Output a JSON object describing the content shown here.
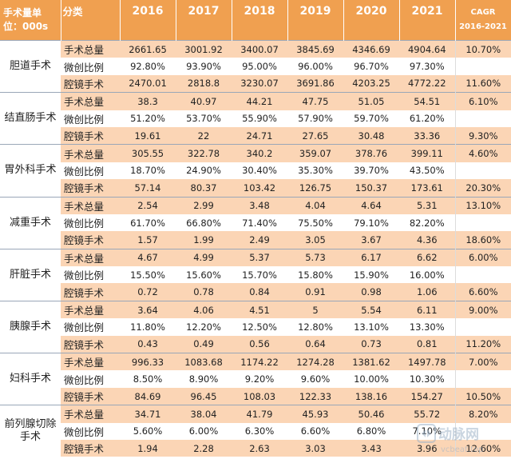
{
  "header": {
    "unit_label_line1": "手术量单",
    "unit_label_line2": "位：000s",
    "category_label": "分类",
    "years": [
      "2016",
      "2017",
      "2018",
      "2019",
      "2020",
      "2021"
    ],
    "cagr_label": "CAGR",
    "cagr_period": "2016-2021"
  },
  "groups": [
    {
      "name": "胆道手术",
      "rows": [
        {
          "label": "手术总量",
          "values": [
            "2661.65",
            "3001.92",
            "3400.07",
            "3845.69",
            "4346.69",
            "4904.64"
          ],
          "cagr": "10.70%"
        },
        {
          "label": "微创比例",
          "values": [
            "92.80%",
            "93.90%",
            "95.00%",
            "96.00%",
            "96.70%",
            "97.30%"
          ],
          "cagr": ""
        },
        {
          "label": "腔镜手术",
          "values": [
            "2470.01",
            "2818.8",
            "3230.07",
            "3691.86",
            "4203.25",
            "4772.22"
          ],
          "cagr": "11.60%"
        }
      ]
    },
    {
      "name": "结直肠手术",
      "rows": [
        {
          "label": "手术总量",
          "values": [
            "38.3",
            "40.97",
            "44.21",
            "47.75",
            "51.05",
            "54.51"
          ],
          "cagr": "6.10%"
        },
        {
          "label": "微创比例",
          "values": [
            "51.20%",
            "53.70%",
            "55.90%",
            "57.90%",
            "59.70%",
            "61.20%"
          ],
          "cagr": ""
        },
        {
          "label": "腔镜手术",
          "values": [
            "19.61",
            "22",
            "24.71",
            "27.65",
            "30.48",
            "33.36"
          ],
          "cagr": "9.30%"
        }
      ]
    },
    {
      "name": "胃外科手术",
      "rows": [
        {
          "label": "手术总量",
          "values": [
            "305.55",
            "322.78",
            "340.2",
            "359.07",
            "378.76",
            "399.11"
          ],
          "cagr": "4.60%"
        },
        {
          "label": "微创比例",
          "values": [
            "18.70%",
            "24.90%",
            "30.40%",
            "35.30%",
            "39.70%",
            "43.50%"
          ],
          "cagr": ""
        },
        {
          "label": "腔镜手术",
          "values": [
            "57.14",
            "80.37",
            "103.42",
            "126.75",
            "150.37",
            "173.61"
          ],
          "cagr": "20.30%"
        }
      ]
    },
    {
      "name": "减重手术",
      "rows": [
        {
          "label": "手术总量",
          "values": [
            "2.54",
            "2.99",
            "3.48",
            "4.04",
            "4.64",
            "5.31"
          ],
          "cagr": "13.10%"
        },
        {
          "label": "微创比例",
          "values": [
            "61.70%",
            "66.80%",
            "71.40%",
            "75.50%",
            "79.10%",
            "82.20%"
          ],
          "cagr": ""
        },
        {
          "label": "腔镜手术",
          "values": [
            "1.57",
            "1.99",
            "2.49",
            "3.05",
            "3.67",
            "4.36"
          ],
          "cagr": "18.60%"
        }
      ]
    },
    {
      "name": "肝脏手术",
      "rows": [
        {
          "label": "手术总量",
          "values": [
            "4.67",
            "4.99",
            "5.37",
            "5.73",
            "6.17",
            "6.62"
          ],
          "cagr": "6.00%"
        },
        {
          "label": "微创比例",
          "values": [
            "15.50%",
            "15.60%",
            "15.70%",
            "15.80%",
            "15.90%",
            "16.00%"
          ],
          "cagr": ""
        },
        {
          "label": "腔镜手术",
          "values": [
            "0.72",
            "0.78",
            "0.84",
            "0.91",
            "0.98",
            "1.06"
          ],
          "cagr": "6.60%"
        }
      ]
    },
    {
      "name": "胰腺手术",
      "rows": [
        {
          "label": "手术总量",
          "values": [
            "3.64",
            "4.06",
            "4.51",
            "5",
            "5.54",
            "6.11"
          ],
          "cagr": "9.00%"
        },
        {
          "label": "微创比例",
          "values": [
            "11.80%",
            "12.20%",
            "12.50%",
            "12.80%",
            "13.10%",
            "13.30%"
          ],
          "cagr": ""
        },
        {
          "label": "腔镜手术",
          "values": [
            "0.43",
            "0.49",
            "0.56",
            "0.64",
            "0.73",
            "0.81"
          ],
          "cagr": "11.20%"
        }
      ]
    },
    {
      "name": "妇科手术",
      "rows": [
        {
          "label": "手术总量",
          "values": [
            "996.33",
            "1083.68",
            "1174.22",
            "1274.28",
            "1381.62",
            "1497.78"
          ],
          "cagr": "7.00%"
        },
        {
          "label": "微创比例",
          "values": [
            "8.50%",
            "8.90%",
            "9.20%",
            "9.60%",
            "10.00%",
            "10.30%"
          ],
          "cagr": ""
        },
        {
          "label": "腔镜手术",
          "values": [
            "84.69",
            "96.45",
            "108.03",
            "122.33",
            "138.16",
            "154.27"
          ],
          "cagr": "10.50%"
        }
      ]
    },
    {
      "name": "前列腺切除手术",
      "rows": [
        {
          "label": "手术总量",
          "values": [
            "34.71",
            "38.04",
            "41.79",
            "45.93",
            "50.46",
            "55.72"
          ],
          "cagr": "8.20%"
        },
        {
          "label": "微创比例",
          "values": [
            "5.60%",
            "6.00%",
            "6.30%",
            "6.60%",
            "6.80%",
            "7.10%"
          ],
          "cagr": ""
        },
        {
          "label": "腔镜手术",
          "values": [
            "1.94",
            "2.28",
            "2.63",
            "3.03",
            "3.43",
            "3.96"
          ],
          "cagr": "12.60%"
        }
      ]
    }
  ],
  "watermark": {
    "brand": "动脉网",
    "url": "vcbeat.top"
  }
}
